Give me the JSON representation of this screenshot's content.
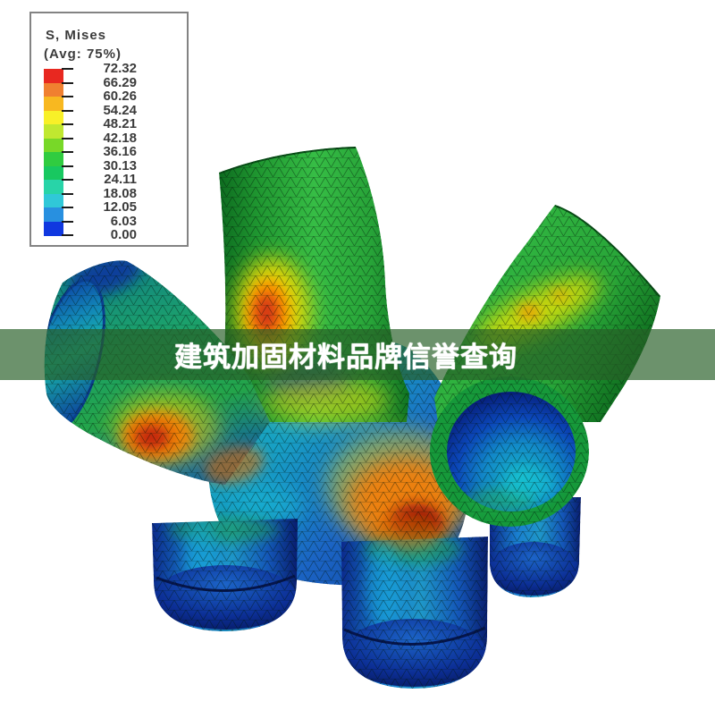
{
  "banner": {
    "text": "建筑加固材料品牌信誉查询",
    "background_color": "#265e26",
    "background_opacity": 0.68,
    "text_color": "#ffffff"
  },
  "legend": {
    "title": "S, Mises",
    "subtitle": "(Avg: 75%)",
    "values": [
      "72.32",
      "66.29",
      "60.26",
      "54.24",
      "48.21",
      "42.18",
      "36.16",
      "30.13",
      "24.11",
      "18.08",
      "12.05",
      "6.03",
      "0.00"
    ],
    "colors": [
      "#e82820",
      "#f08030",
      "#f8b820",
      "#f8f028",
      "#c0e830",
      "#78d828",
      "#30cc40",
      "#18c860",
      "#28d4a8",
      "#30c8d8",
      "#2890e0",
      "#1038e0"
    ],
    "box_border_color": "#838383",
    "text_color": "#3b3b3b"
  },
  "chart_data": {
    "type": "heatmap",
    "title": "S, Mises",
    "subtitle": "(Avg: 75%)",
    "description": "Von Mises stress contour plot on a triangular-mesh finite element model of a multi-branch tubular pipe joint",
    "value_range": [
      0.0,
      72.32
    ],
    "colorbar_tick_values": [
      72.32,
      66.29,
      60.26,
      54.24,
      48.21,
      42.18,
      36.16,
      30.13,
      24.11,
      18.08,
      12.05,
      6.03,
      0.0
    ],
    "colorbar_band_colors_max_to_min": [
      "#e82820",
      "#f08030",
      "#f8b820",
      "#f8f028",
      "#c0e830",
      "#78d828",
      "#30cc40",
      "#18c860",
      "#28d4a8",
      "#30c8d8",
      "#2890e0",
      "#1038e0"
    ],
    "legend_position": "top-left",
    "grid": "triangular mesh overlay",
    "model_colors": {
      "tube_base_green": "#2ca23c",
      "hub_cyan": "#1ca8c0",
      "leg_blue": "#1448b8",
      "cap_navy": "#071a66",
      "hotspot_red": "#b01808",
      "hotspot_orange": "#ff7d00",
      "hotspot_yellow": "#ffe000"
    }
  }
}
